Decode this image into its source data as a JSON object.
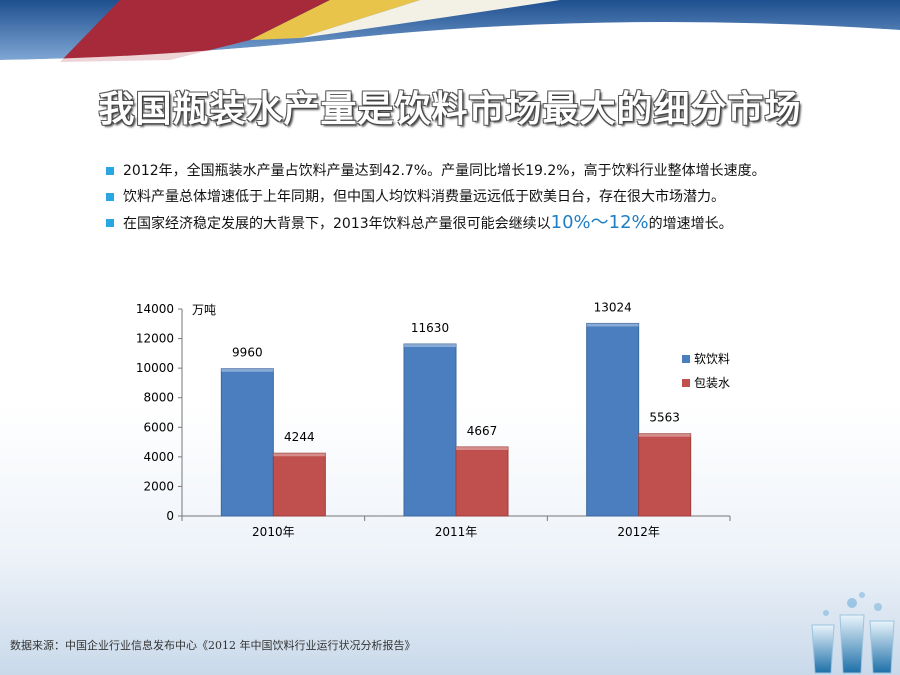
{
  "title": "我国瓶装水产量是饮料市场最大的细分市场",
  "bullets": [
    "2012年，全国瓶装水产量占饮料产量达到42.7%。产量同比增长19.2%，高于饮料行业整体增长速度。",
    "饮料产量总体增速低于上年同期，但中国人均饮料消费量远远低于欧美日台，存在很大市场潜力。"
  ],
  "bullet3": {
    "prefix": "在国家经济稳定发展的大背景下，2013年饮料总产量很可能会继续以",
    "highlight": "10%～12%",
    "suffix": "的增速增长。"
  },
  "footer": "数据来源：中国企业行业信息发布中心《2012 年中国饮料行业运行状况分析报告》",
  "colors": {
    "soft_drink": "#4a7ebf",
    "bottled_water": "#c0504d",
    "bullet": "#2aa7e0",
    "highlight": "#1f7fc4"
  },
  "chart_data": {
    "type": "bar",
    "categories": [
      "2010年",
      "2011年",
      "2012年"
    ],
    "series": [
      {
        "name": "软饮料",
        "values": [
          9960,
          11630,
          13024
        ]
      },
      {
        "name": "包装水",
        "values": [
          4244,
          4667,
          5563
        ]
      }
    ],
    "ylabel": "万吨",
    "ylim": [
      0,
      14000
    ],
    "yticks": [
      0,
      2000,
      4000,
      6000,
      8000,
      10000,
      12000,
      14000
    ],
    "legend": "right",
    "grid": false
  }
}
